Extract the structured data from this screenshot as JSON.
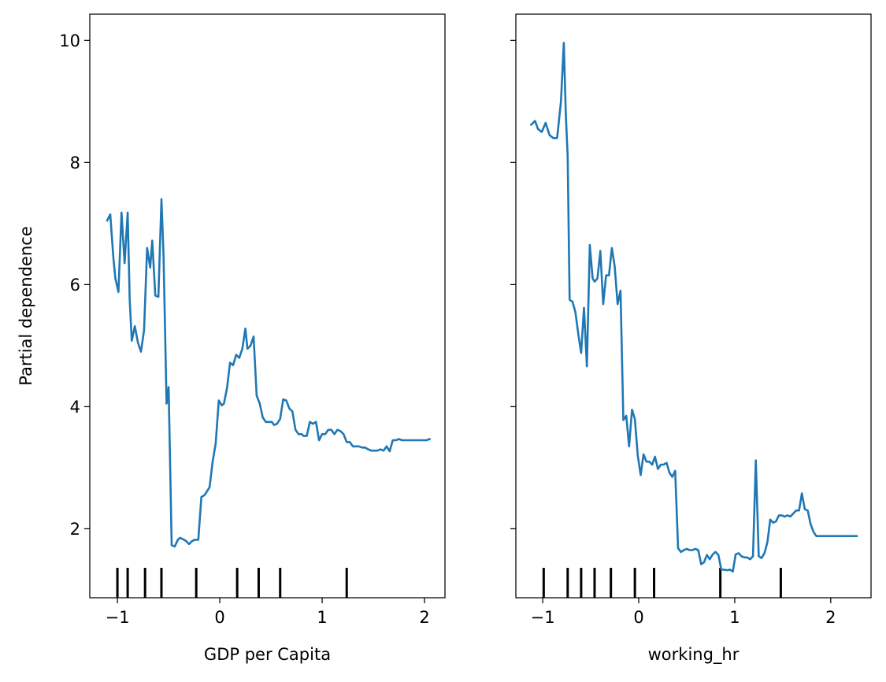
{
  "chart_data": [
    {
      "type": "line",
      "xlabel": "GDP per Capita",
      "ylabel": "Partial dependence",
      "xlim": [
        -1.27,
        2.2
      ],
      "ylim": [
        0.87,
        10.43
      ],
      "xticks": [
        -1,
        0,
        1,
        2
      ],
      "xtick_labels": [
        "−1",
        "0",
        "1",
        "2"
      ],
      "yticks": [
        2,
        4,
        6,
        8,
        10
      ],
      "ytick_labels": [
        "2",
        "4",
        "6",
        "8",
        "10"
      ],
      "show_ytick_labels": true,
      "rug_deciles": [
        -1.0,
        -0.9,
        -0.73,
        -0.57,
        -0.23,
        0.17,
        0.38,
        0.59,
        1.24
      ],
      "series": [
        {
          "color": "#1f77b4",
          "x": [
            -1.1,
            -1.07,
            -1.04,
            -1.02,
            -0.99,
            -0.96,
            -0.93,
            -0.9,
            -0.88,
            -0.86,
            -0.83,
            -0.8,
            -0.77,
            -0.74,
            -0.71,
            -0.68,
            -0.66,
            -0.63,
            -0.6,
            -0.57,
            -0.55,
            -0.52,
            -0.5,
            -0.47,
            -0.44,
            -0.41,
            -0.39,
            -0.36,
            -0.33,
            -0.3,
            -0.27,
            -0.24,
            -0.21,
            -0.18,
            -0.15,
            -0.13,
            -0.1,
            -0.07,
            -0.04,
            -0.01,
            0.02,
            0.04,
            0.07,
            0.1,
            0.13,
            0.16,
            0.19,
            0.22,
            0.25,
            0.27,
            0.3,
            0.33,
            0.36,
            0.39,
            0.42,
            0.45,
            0.48,
            0.51,
            0.53,
            0.56,
            0.59,
            0.62,
            0.65,
            0.68,
            0.71,
            0.74,
            0.77,
            0.8,
            0.82,
            0.85,
            0.88,
            0.91,
            0.94,
            0.97,
            1.0,
            1.03,
            1.06,
            1.09,
            1.12,
            1.15,
            1.18,
            1.21,
            1.24,
            1.27,
            1.3,
            1.33,
            1.36,
            1.39,
            1.42,
            1.45,
            1.48,
            1.51,
            1.54,
            1.57,
            1.6,
            1.63,
            1.66,
            1.69,
            1.72,
            1.75,
            1.78,
            1.81,
            1.84,
            1.87,
            1.9,
            1.93,
            1.96,
            1.99,
            2.02,
            2.05
          ],
          "y": [
            7.05,
            7.15,
            6.45,
            6.1,
            5.88,
            7.18,
            6.35,
            7.18,
            5.75,
            5.08,
            5.32,
            5.05,
            4.9,
            5.25,
            6.6,
            6.28,
            6.72,
            5.82,
            5.8,
            7.4,
            6.5,
            4.05,
            4.32,
            1.73,
            1.71,
            1.82,
            1.85,
            1.83,
            1.8,
            1.75,
            1.8,
            1.82,
            1.82,
            2.52,
            2.55,
            2.6,
            2.68,
            3.1,
            3.4,
            4.1,
            4.02,
            4.05,
            4.3,
            4.72,
            4.68,
            4.85,
            4.8,
            4.95,
            5.28,
            4.95,
            5.0,
            5.15,
            4.18,
            4.05,
            3.82,
            3.75,
            3.75,
            3.75,
            3.7,
            3.72,
            3.8,
            4.12,
            4.1,
            3.97,
            3.92,
            3.62,
            3.55,
            3.55,
            3.52,
            3.52,
            3.75,
            3.72,
            3.75,
            3.45,
            3.55,
            3.55,
            3.62,
            3.62,
            3.55,
            3.62,
            3.6,
            3.55,
            3.42,
            3.42,
            3.35,
            3.35,
            3.35,
            3.33,
            3.33,
            3.3,
            3.28,
            3.28,
            3.28,
            3.3,
            3.28,
            3.35,
            3.27,
            3.45,
            3.45,
            3.47,
            3.45,
            3.45,
            3.45,
            3.45,
            3.45,
            3.45,
            3.45,
            3.45,
            3.45,
            3.47
          ]
        }
      ]
    },
    {
      "type": "line",
      "xlabel": "working_hr",
      "ylabel": "",
      "xlim": [
        -1.28,
        2.42
      ],
      "ylim": [
        0.87,
        10.43
      ],
      "xticks": [
        -1,
        0,
        1,
        2
      ],
      "xtick_labels": [
        "−1",
        "0",
        "1",
        "2"
      ],
      "yticks": [
        2,
        4,
        6,
        8,
        10
      ],
      "ytick_labels": [
        "2",
        "4",
        "6",
        "8",
        "10"
      ],
      "show_ytick_labels": false,
      "rug_deciles": [
        -0.99,
        -0.74,
        -0.6,
        -0.46,
        -0.29,
        -0.04,
        0.16,
        0.85,
        1.48
      ],
      "series": [
        {
          "color": "#1f77b4",
          "x": [
            -1.12,
            -1.08,
            -1.05,
            -1.01,
            -0.97,
            -0.93,
            -0.89,
            -0.85,
            -0.81,
            -0.78,
            -0.76,
            -0.74,
            -0.72,
            -0.69,
            -0.66,
            -0.63,
            -0.6,
            -0.57,
            -0.54,
            -0.51,
            -0.48,
            -0.46,
            -0.43,
            -0.4,
            -0.37,
            -0.34,
            -0.31,
            -0.28,
            -0.25,
            -0.22,
            -0.19,
            -0.16,
            -0.13,
            -0.1,
            -0.07,
            -0.04,
            -0.01,
            0.02,
            0.05,
            0.08,
            0.11,
            0.14,
            0.17,
            0.2,
            0.23,
            0.26,
            0.29,
            0.32,
            0.35,
            0.38,
            0.41,
            0.44,
            0.47,
            0.5,
            0.53,
            0.56,
            0.59,
            0.62,
            0.65,
            0.68,
            0.71,
            0.74,
            0.77,
            0.8,
            0.83,
            0.86,
            0.89,
            0.92,
            0.95,
            0.98,
            1.01,
            1.04,
            1.07,
            1.1,
            1.13,
            1.16,
            1.19,
            1.22,
            1.25,
            1.28,
            1.31,
            1.34,
            1.37,
            1.4,
            1.43,
            1.46,
            1.49,
            1.52,
            1.55,
            1.58,
            1.61,
            1.64,
            1.67,
            1.7,
            1.73,
            1.76,
            1.79,
            1.82,
            1.85,
            1.88,
            1.91,
            1.94,
            1.97,
            2.0,
            2.03,
            2.06,
            2.09,
            2.12,
            2.15,
            2.18,
            2.21,
            2.24,
            2.27
          ],
          "y": [
            8.62,
            8.68,
            8.55,
            8.5,
            8.65,
            8.45,
            8.4,
            8.4,
            9.0,
            9.96,
            8.8,
            8.1,
            5.75,
            5.72,
            5.55,
            5.2,
            4.88,
            5.62,
            4.66,
            6.65,
            6.1,
            6.05,
            6.1,
            6.55,
            5.68,
            6.15,
            6.15,
            6.6,
            6.3,
            5.68,
            5.9,
            3.78,
            3.85,
            3.35,
            3.95,
            3.8,
            3.2,
            2.88,
            3.22,
            3.1,
            3.1,
            3.05,
            3.18,
            2.98,
            3.05,
            3.05,
            3.08,
            2.92,
            2.85,
            2.95,
            1.68,
            1.62,
            1.65,
            1.67,
            1.65,
            1.65,
            1.67,
            1.65,
            1.42,
            1.45,
            1.57,
            1.5,
            1.58,
            1.62,
            1.57,
            1.33,
            1.33,
            1.32,
            1.33,
            1.3,
            1.58,
            1.6,
            1.55,
            1.53,
            1.53,
            1.5,
            1.55,
            3.12,
            1.55,
            1.52,
            1.6,
            1.78,
            2.15,
            2.1,
            2.12,
            2.22,
            2.22,
            2.2,
            2.22,
            2.2,
            2.25,
            2.3,
            2.3,
            2.58,
            2.32,
            2.3,
            2.08,
            1.95,
            1.88,
            1.88,
            1.88,
            1.88,
            1.88,
            1.88,
            1.88,
            1.88,
            1.88,
            1.88,
            1.88,
            1.88,
            1.88,
            1.88,
            1.88
          ]
        }
      ]
    }
  ]
}
